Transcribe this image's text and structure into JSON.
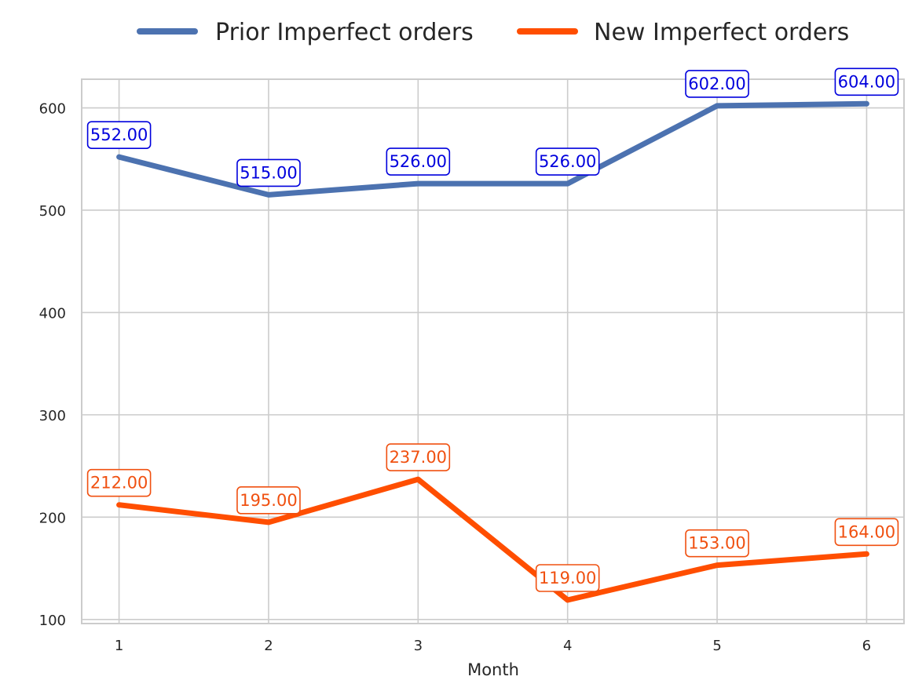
{
  "chart_data": {
    "type": "line",
    "title": "",
    "xlabel": "Month",
    "ylabel": "",
    "x": [
      1,
      2,
      3,
      4,
      5,
      6
    ],
    "xticks": [
      "1",
      "2",
      "3",
      "4",
      "5",
      "6"
    ],
    "xlim": [
      0.75,
      6.25
    ],
    "ylim": [
      96,
      628
    ],
    "yticks": [
      "100",
      "200",
      "300",
      "400",
      "500",
      "600"
    ],
    "grid": true,
    "legend_position": "top-center",
    "series": [
      {
        "name": "Prior Imperfect orders",
        "values": [
          552,
          515,
          526,
          526,
          602,
          604
        ],
        "labels": [
          "552.00",
          "515.00",
          "526.00",
          "526.00",
          "602.00",
          "604.00"
        ],
        "color": "#4C72B0",
        "label_color": "#0000DD"
      },
      {
        "name": "New Imperfect orders",
        "values": [
          212,
          195,
          237,
          119,
          153,
          164
        ],
        "labels": [
          "212.00",
          "195.00",
          "237.00",
          "119.00",
          "153.00",
          "164.00"
        ],
        "color": "#FF4E00",
        "label_color": "#F05010"
      }
    ]
  }
}
